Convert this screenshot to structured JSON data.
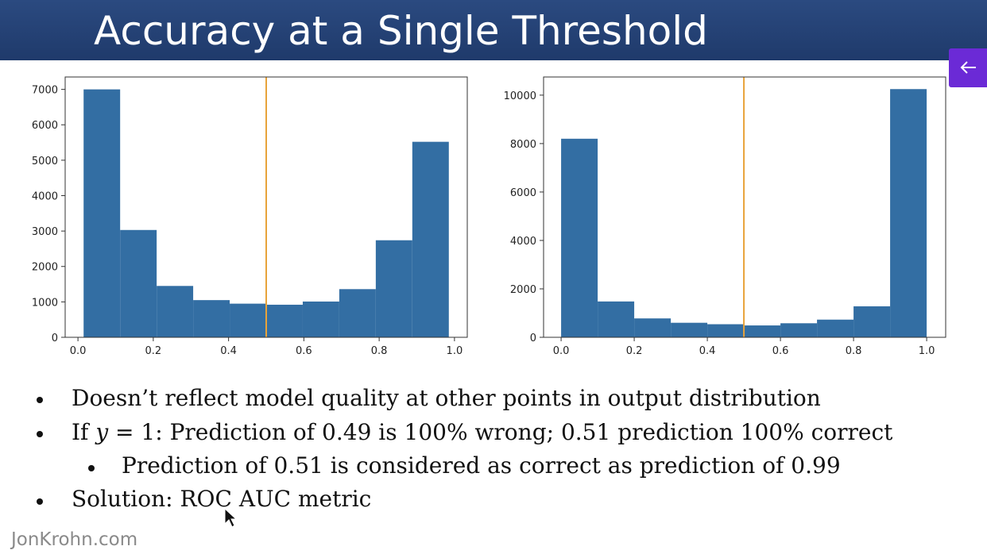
{
  "title": "Accuracy at a Single Threshold",
  "chart_data": [
    {
      "type": "histogram",
      "color": "#336ea3",
      "bins": [
        0.015,
        0.112,
        0.209,
        0.306,
        0.403,
        0.5,
        0.597,
        0.694,
        0.791,
        0.888,
        0.985
      ],
      "counts": [
        7000,
        3030,
        1450,
        1050,
        950,
        920,
        1010,
        1360,
        2740,
        5520
      ],
      "xlim": [
        -0.034,
        1.034
      ],
      "ylim": [
        0,
        7350
      ],
      "xticks": [
        {
          "value": 0,
          "label": "0.0"
        },
        0.2,
        0.4,
        0.6,
        0.8,
        {
          "value": 1,
          "label": "1.0"
        }
      ],
      "yticks": [
        0,
        1000,
        2000,
        3000,
        4000,
        5000,
        6000,
        7000
      ],
      "vline": 0.5,
      "vline_color": "#e8a33a"
    },
    {
      "type": "histogram",
      "color": "#336ea3",
      "bins": [
        0,
        0.1,
        0.2,
        0.3,
        0.4,
        0.5,
        0.6,
        0.7,
        0.8,
        0.9,
        1.0
      ],
      "counts": [
        8200,
        1480,
        780,
        600,
        540,
        490,
        580,
        730,
        1280,
        10250
      ],
      "xlim": [
        -0.048,
        1.052
      ],
      "ylim": [
        0,
        10750
      ],
      "xticks": [
        {
          "value": 0,
          "label": "0.0"
        },
        0.2,
        0.4,
        0.6,
        0.8,
        {
          "value": 1,
          "label": "1.0"
        }
      ],
      "yticks": [
        0,
        2000,
        4000,
        6000,
        8000,
        10000
      ],
      "vline": 0.5,
      "vline_color": "#e8a33a"
    }
  ],
  "bullets": [
    "Doesn’t reflect model quality at other points in output distribution",
    [
      "If ",
      "y",
      " = 1: Prediction of 0.49 is 100% wrong; 0.51 prediction 100% correct"
    ],
    "Prediction of 0.51 is considered as correct as prediction of 0.99",
    "Solution: ROC AUC metric"
  ],
  "footer": "JonKrohn.com"
}
